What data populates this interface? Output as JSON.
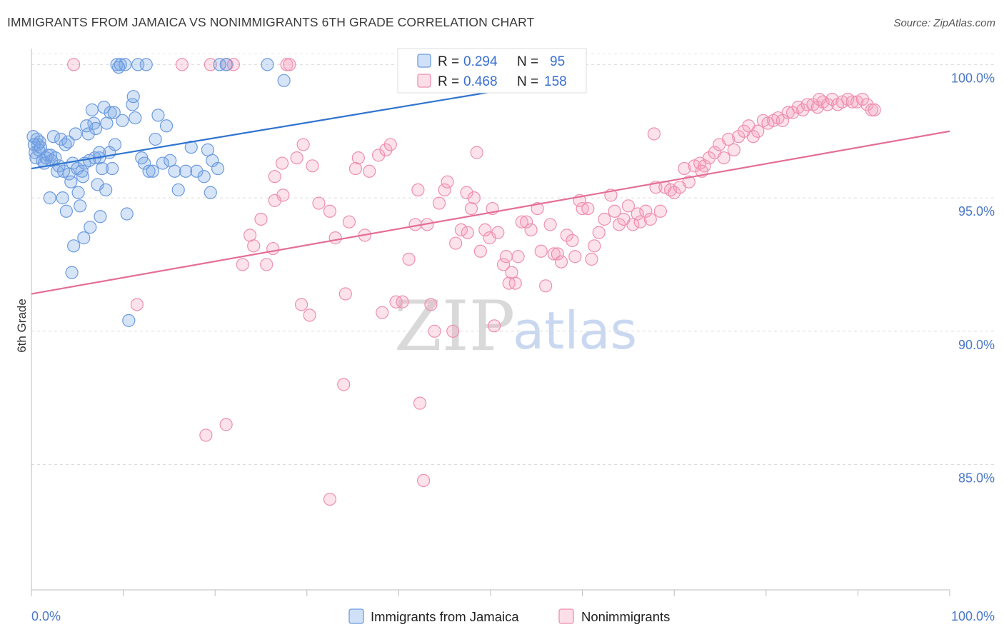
{
  "title": "IMMIGRANTS FROM JAMAICA VS NONIMMIGRANTS 6TH GRADE CORRELATION CHART",
  "source": "Source: ZipAtlas.com",
  "watermark": {
    "zip": "ZIP",
    "atlas": "atlas"
  },
  "chart_data": {
    "type": "scatter",
    "title": "IMMIGRANTS FROM JAMAICA VS NONIMMIGRANTS 6TH GRADE CORRELATION CHART",
    "xlabel": "",
    "ylabel": "6th Grade",
    "xlim": [
      0,
      100
    ],
    "ylim": [
      80.3,
      100.6
    ],
    "y_ticks": [
      {
        "value": 85.0,
        "label": "85.0%"
      },
      {
        "value": 90.0,
        "label": "90.0%"
      },
      {
        "value": 95.0,
        "label": "95.0%"
      },
      {
        "value": 100.0,
        "label": "100.0%"
      }
    ],
    "x_tick_labels": {
      "left": "0.0%",
      "right": "100.0%"
    },
    "x_minor_ticks": [
      0,
      10,
      20,
      30,
      40,
      50,
      60,
      70,
      80,
      90,
      100
    ],
    "grid": true,
    "legend": {
      "r_label": "R =",
      "n_label": "N =",
      "entries": [
        {
          "name": "Immigrants from Jamaica",
          "r": "0.294",
          "n": "95"
        },
        {
          "name": "Nonimmigrants",
          "r": "0.468",
          "n": "158"
        }
      ]
    },
    "series": [
      {
        "name": "Immigrants from Jamaica",
        "color": "#6c9be0",
        "fill": "rgba(120,165,230,0.30)",
        "trend": {
          "x0": 0,
          "y0": 96.1,
          "x1": 50.5,
          "y1": 99.0,
          "color": "#2f74d0"
        },
        "points": [
          [
            0.2,
            97.3
          ],
          [
            0.4,
            96.7
          ],
          [
            0.5,
            96.5
          ],
          [
            0.6,
            97.2
          ],
          [
            0.7,
            97.0
          ],
          [
            0.8,
            96.8
          ],
          [
            0.9,
            97.1
          ],
          [
            1.0,
            96.9
          ],
          [
            1.2,
            96.4
          ],
          [
            1.4,
            96.3
          ],
          [
            1.6,
            96.5
          ],
          [
            1.8,
            96.6
          ],
          [
            2.0,
            95.0
          ],
          [
            2.2,
            96.4
          ],
          [
            2.4,
            97.3
          ],
          [
            2.6,
            96.5
          ],
          [
            2.8,
            96.0
          ],
          [
            3.0,
            96.2
          ],
          [
            3.2,
            97.2
          ],
          [
            3.4,
            95.0
          ],
          [
            3.5,
            96.0
          ],
          [
            3.7,
            97.0
          ],
          [
            3.8,
            94.5
          ],
          [
            4.0,
            97.1
          ],
          [
            4.1,
            95.9
          ],
          [
            4.3,
            95.6
          ],
          [
            4.4,
            92.2
          ],
          [
            4.5,
            96.3
          ],
          [
            4.6,
            93.2
          ],
          [
            4.8,
            97.4
          ],
          [
            5.0,
            96.1
          ],
          [
            5.1,
            95.2
          ],
          [
            5.3,
            94.7
          ],
          [
            5.5,
            96.0
          ],
          [
            5.6,
            95.8
          ],
          [
            5.7,
            93.5
          ],
          [
            5.8,
            96.3
          ],
          [
            6.0,
            97.7
          ],
          [
            6.2,
            97.4
          ],
          [
            6.3,
            96.4
          ],
          [
            6.4,
            93.9
          ],
          [
            6.6,
            98.3
          ],
          [
            6.8,
            97.8
          ],
          [
            7.0,
            97.6
          ],
          [
            7.2,
            95.5
          ],
          [
            7.4,
            96.5
          ],
          [
            7.5,
            94.3
          ],
          [
            7.7,
            96.1
          ],
          [
            7.9,
            98.4
          ],
          [
            8.1,
            95.3
          ],
          [
            8.2,
            97.8
          ],
          [
            8.5,
            96.7
          ],
          [
            8.6,
            98.2
          ],
          [
            8.8,
            96.1
          ],
          [
            9.0,
            98.2
          ],
          [
            9.1,
            97.0
          ],
          [
            9.3,
            100.0
          ],
          [
            9.5,
            99.9
          ],
          [
            9.7,
            100.0
          ],
          [
            9.9,
            97.9
          ],
          [
            10.2,
            100.0
          ],
          [
            10.4,
            94.4
          ],
          [
            10.6,
            90.4
          ],
          [
            11.0,
            98.5
          ],
          [
            11.3,
            98.0
          ],
          [
            11.6,
            100.0
          ],
          [
            12.0,
            96.5
          ],
          [
            12.3,
            96.3
          ],
          [
            12.5,
            100.0
          ],
          [
            12.8,
            96.0
          ],
          [
            13.2,
            96.0
          ],
          [
            13.5,
            97.2
          ],
          [
            13.8,
            98.1
          ],
          [
            14.3,
            96.3
          ],
          [
            14.7,
            97.7
          ],
          [
            15.1,
            96.4
          ],
          [
            15.6,
            96.0
          ],
          [
            16.0,
            95.3
          ],
          [
            16.8,
            96.0
          ],
          [
            17.4,
            96.9
          ],
          [
            18.0,
            96.0
          ],
          [
            18.8,
            95.8
          ],
          [
            19.2,
            96.8
          ],
          [
            19.5,
            95.2
          ],
          [
            19.7,
            96.4
          ],
          [
            20.3,
            96.1
          ],
          [
            20.5,
            100.0
          ],
          [
            21.2,
            100.0
          ],
          [
            25.7,
            100.0
          ],
          [
            27.5,
            99.4
          ],
          [
            11.1,
            98.8
          ],
          [
            6.9,
            96.5
          ],
          [
            2.1,
            96.6
          ],
          [
            0.3,
            97.0
          ],
          [
            7.4,
            96.7
          ]
        ]
      },
      {
        "name": "Nonimmigrants",
        "color": "#ee8fae",
        "fill": "rgba(245,160,190,0.30)",
        "trend": {
          "x0": 0,
          "y0": 91.4,
          "x1": 100,
          "y1": 97.5,
          "color": "#e46e97"
        },
        "points": [
          [
            4.6,
            100.0
          ],
          [
            11.5,
            91.0
          ],
          [
            16.4,
            100.0
          ],
          [
            19.5,
            100.0
          ],
          [
            21.3,
            100.0
          ],
          [
            22.0,
            100.0
          ],
          [
            23.0,
            92.5
          ],
          [
            23.8,
            93.6
          ],
          [
            24.2,
            93.2
          ],
          [
            25.0,
            94.2
          ],
          [
            25.6,
            92.5
          ],
          [
            26.3,
            93.1
          ],
          [
            26.5,
            95.8
          ],
          [
            27.3,
            96.3
          ],
          [
            27.8,
            100.0
          ],
          [
            28.1,
            100.0
          ],
          [
            28.9,
            96.5
          ],
          [
            29.4,
            91.0
          ],
          [
            29.6,
            97.0
          ],
          [
            30.3,
            90.6
          ],
          [
            30.6,
            96.2
          ],
          [
            31.3,
            94.8
          ],
          [
            32.5,
            94.5
          ],
          [
            33.1,
            93.5
          ],
          [
            34.0,
            88.0
          ],
          [
            34.2,
            91.4
          ],
          [
            34.6,
            94.1
          ],
          [
            35.3,
            96.1
          ],
          [
            35.6,
            96.5
          ],
          [
            36.3,
            93.6
          ],
          [
            36.8,
            96.0
          ],
          [
            37.8,
            96.6
          ],
          [
            38.2,
            90.7
          ],
          [
            38.6,
            96.8
          ],
          [
            39.1,
            97.0
          ],
          [
            39.7,
            91.1
          ],
          [
            40.4,
            91.1
          ],
          [
            41.1,
            92.7
          ],
          [
            41.8,
            94.0
          ],
          [
            42.1,
            95.3
          ],
          [
            42.3,
            87.3
          ],
          [
            42.7,
            84.4
          ],
          [
            43.1,
            94.0
          ],
          [
            43.5,
            91.0
          ],
          [
            43.9,
            90.0
          ],
          [
            44.4,
            94.8
          ],
          [
            45.0,
            95.3
          ],
          [
            45.3,
            95.6
          ],
          [
            45.9,
            90.0
          ],
          [
            46.2,
            93.3
          ],
          [
            46.8,
            93.8
          ],
          [
            47.4,
            95.2
          ],
          [
            47.5,
            93.7
          ],
          [
            47.9,
            94.6
          ],
          [
            48.5,
            96.7
          ],
          [
            48.9,
            93.0
          ],
          [
            49.4,
            93.8
          ],
          [
            49.9,
            93.5
          ],
          [
            50.2,
            94.6
          ],
          [
            50.8,
            93.7
          ],
          [
            51.4,
            92.5
          ],
          [
            51.7,
            92.8
          ],
          [
            52.0,
            91.8
          ],
          [
            52.3,
            92.2
          ],
          [
            52.7,
            91.8
          ],
          [
            53.0,
            92.8
          ],
          [
            53.4,
            94.1
          ],
          [
            53.9,
            94.1
          ],
          [
            54.4,
            93.8
          ],
          [
            55.1,
            94.6
          ],
          [
            56.0,
            91.7
          ],
          [
            56.5,
            94.0
          ],
          [
            56.9,
            92.9
          ],
          [
            57.3,
            92.9
          ],
          [
            57.7,
            92.6
          ],
          [
            58.3,
            93.6
          ],
          [
            58.9,
            93.4
          ],
          [
            59.2,
            92.8
          ],
          [
            59.7,
            94.9
          ],
          [
            60.0,
            94.6
          ],
          [
            60.6,
            94.6
          ],
          [
            61.3,
            93.2
          ],
          [
            61.8,
            93.7
          ],
          [
            62.4,
            94.2
          ],
          [
            63.1,
            95.1
          ],
          [
            63.5,
            94.5
          ],
          [
            64.0,
            94.0
          ],
          [
            64.5,
            94.2
          ],
          [
            65.0,
            94.7
          ],
          [
            65.5,
            94.0
          ],
          [
            66.0,
            94.4
          ],
          [
            66.3,
            94.1
          ],
          [
            66.9,
            94.5
          ],
          [
            67.4,
            94.2
          ],
          [
            68.0,
            95.4
          ],
          [
            68.5,
            94.5
          ],
          [
            69.0,
            95.4
          ],
          [
            69.6,
            95.3
          ],
          [
            70.0,
            95.2
          ],
          [
            70.6,
            95.4
          ],
          [
            71.1,
            96.1
          ],
          [
            71.6,
            95.6
          ],
          [
            72.2,
            96.2
          ],
          [
            72.8,
            96.3
          ],
          [
            73.3,
            96.2
          ],
          [
            73.8,
            96.5
          ],
          [
            74.4,
            96.7
          ],
          [
            74.9,
            97.0
          ],
          [
            75.4,
            96.5
          ],
          [
            75.9,
            97.2
          ],
          [
            76.5,
            96.8
          ],
          [
            77.0,
            97.3
          ],
          [
            77.6,
            97.5
          ],
          [
            78.1,
            97.7
          ],
          [
            78.6,
            97.3
          ],
          [
            79.1,
            97.5
          ],
          [
            79.7,
            97.9
          ],
          [
            80.2,
            97.8
          ],
          [
            80.8,
            97.9
          ],
          [
            81.3,
            98.0
          ],
          [
            81.8,
            97.9
          ],
          [
            82.4,
            98.2
          ],
          [
            82.9,
            98.2
          ],
          [
            83.5,
            98.4
          ],
          [
            84.0,
            98.3
          ],
          [
            84.5,
            98.5
          ],
          [
            85.1,
            98.5
          ],
          [
            85.6,
            98.4
          ],
          [
            86.2,
            98.6
          ],
          [
            86.7,
            98.5
          ],
          [
            87.2,
            98.7
          ],
          [
            87.8,
            98.5
          ],
          [
            88.3,
            98.6
          ],
          [
            88.9,
            98.7
          ],
          [
            89.4,
            98.6
          ],
          [
            89.9,
            98.6
          ],
          [
            90.5,
            98.7
          ],
          [
            91.0,
            98.5
          ],
          [
            91.5,
            98.3
          ],
          [
            50.4,
            90.2
          ],
          [
            44.7,
            100.0
          ],
          [
            27.4,
            95.1
          ],
          [
            19.0,
            86.1
          ],
          [
            21.2,
            86.5
          ],
          [
            32.5,
            83.7
          ],
          [
            26.5,
            94.9
          ],
          [
            48.2,
            95.0
          ],
          [
            55.5,
            93.0
          ],
          [
            61.0,
            92.7
          ],
          [
            67.8,
            97.4
          ],
          [
            73.0,
            96.0
          ],
          [
            85.8,
            98.7
          ],
          [
            91.8,
            98.3
          ]
        ]
      }
    ]
  }
}
